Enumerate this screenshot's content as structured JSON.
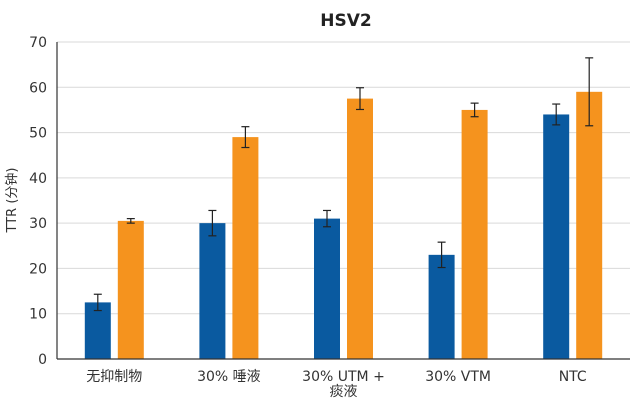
{
  "chart_data": {
    "type": "bar",
    "title": "HSV2",
    "ylabel": "TTR (分钟)",
    "xlabel": "",
    "ylim": [
      0,
      70
    ],
    "yticks": [
      0,
      10,
      20,
      30,
      40,
      50,
      60,
      70
    ],
    "grid": true,
    "categories": [
      [
        "无抑制物"
      ],
      [
        "30% 唾液"
      ],
      [
        "30% UTM +",
        "痰液"
      ],
      [
        "30% VTM"
      ],
      [
        "NTC"
      ]
    ],
    "series": [
      {
        "color": "#0a5aa0",
        "values": [
          12.5,
          30,
          31,
          23,
          54
        ],
        "errors": [
          1.8,
          2.8,
          1.8,
          2.8,
          2.3
        ]
      },
      {
        "color": "#f5931e",
        "values": [
          30.5,
          49,
          57.5,
          55,
          59
        ],
        "errors": [
          0.5,
          2.3,
          2.4,
          1.5,
          7.5
        ]
      }
    ]
  }
}
